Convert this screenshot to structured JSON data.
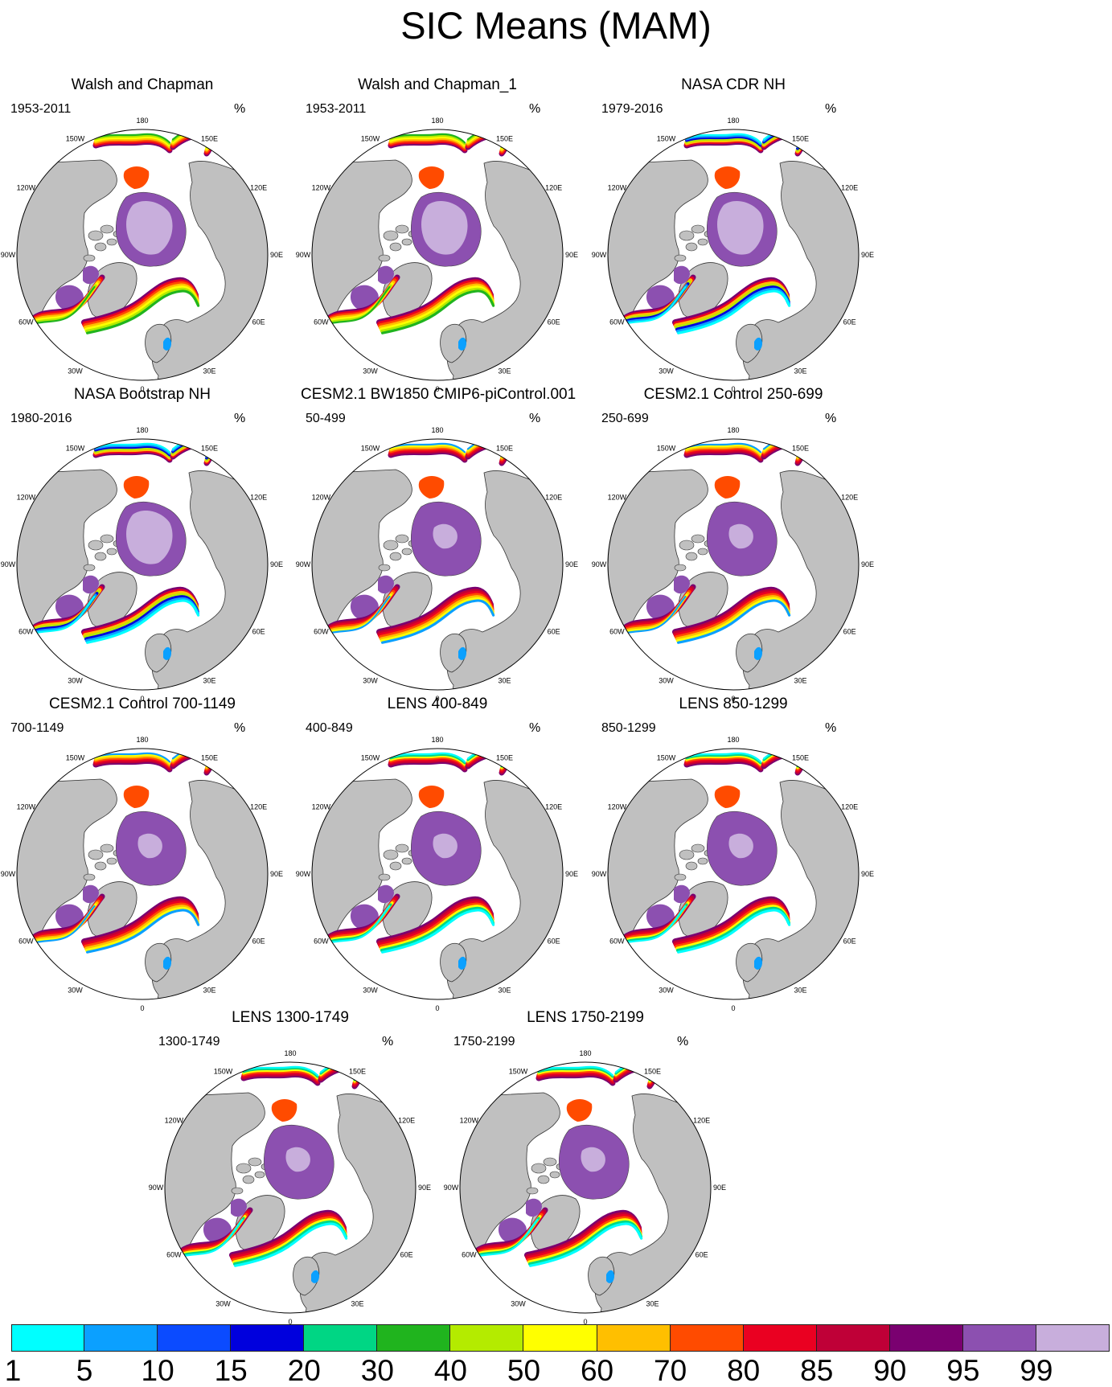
{
  "figure": {
    "title": "SIC Means (MAM)",
    "unit": "%",
    "lon_labels": [
      "180",
      "150E",
      "120E",
      "90E",
      "60E",
      "30E",
      "0",
      "30W",
      "60W",
      "90W",
      "120W",
      "150W"
    ],
    "land_color": "#c0c0c0",
    "ocean_color": "#ffffff"
  },
  "panels": [
    {
      "title": "Walsh and Chapman",
      "period": "1953-2011",
      "style": "obs"
    },
    {
      "title": "Walsh and Chapman_1",
      "period": "1953-2011",
      "style": "obs"
    },
    {
      "title": "NASA CDR NH",
      "period": "1979-2016",
      "style": "sat"
    },
    {
      "title": "NASA Bootstrap NH",
      "period": "1980-2016",
      "style": "sat"
    },
    {
      "title": "CESM2.1 BW1850 CMIP6-piControl.001",
      "period": "50-499",
      "style": "model"
    },
    {
      "title": "CESM2.1 Control 250-699",
      "period": "250-699",
      "style": "model"
    },
    {
      "title": "CESM2.1 Control 700-1149",
      "period": "700-1149",
      "style": "model"
    },
    {
      "title": "LENS 400-849",
      "period": "400-849",
      "style": "lens"
    },
    {
      "title": "LENS 850-1299",
      "period": "850-1299",
      "style": "lens"
    },
    {
      "title": "LENS 1300-1749",
      "period": "1300-1749",
      "style": "lens"
    },
    {
      "title": "LENS 1750-2199",
      "period": "1750-2199",
      "style": "lens"
    }
  ],
  "colorbar": {
    "labels": [
      "1",
      "5",
      "10",
      "15",
      "20",
      "30",
      "40",
      "50",
      "60",
      "70",
      "80",
      "85",
      "90",
      "95",
      "99"
    ],
    "colors": [
      "#00ffff",
      "#0ba0ff",
      "#0b4bff",
      "#0000dd",
      "#00d684",
      "#20b41e",
      "#b4eb00",
      "#ffff00",
      "#ffbf00",
      "#ff4b00",
      "#ea0021",
      "#bf0037",
      "#7a0070",
      "#8c50b0",
      "#c8aedc"
    ]
  }
}
